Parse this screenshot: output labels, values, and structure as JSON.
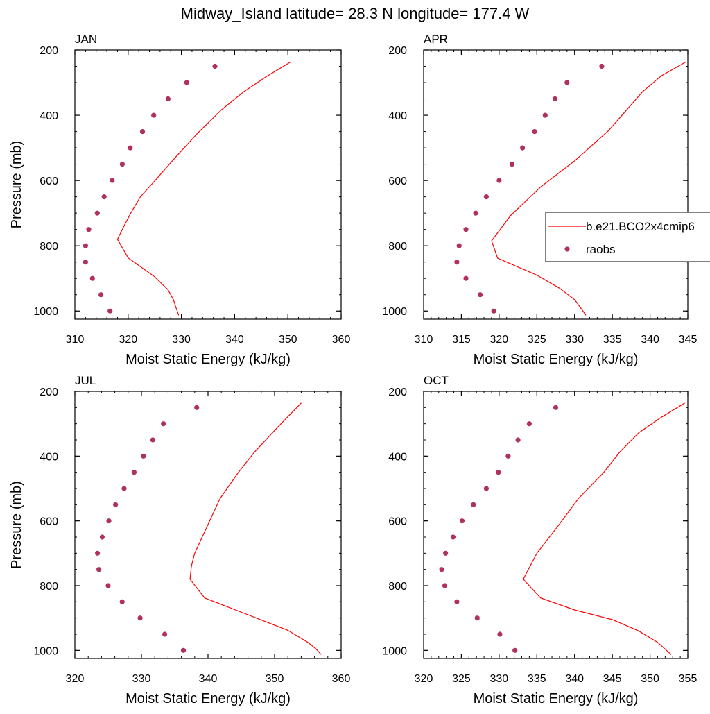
{
  "figure": {
    "title": "Midway_Island  latitude= 28.3 N longitude= 177.4 W"
  },
  "legend": {
    "position": "right",
    "entries": [
      {
        "label": "b.e21.BCO2x4cmip6",
        "style": "line",
        "color": "#ff0000"
      },
      {
        "label": "raobs",
        "style": "marker",
        "color": "#b03060"
      }
    ]
  },
  "chart_data": [
    {
      "type": "line",
      "panel": "JAN",
      "title": "JAN",
      "xlabel": "Moist Static Energy (kJ/kg)",
      "ylabel": "Pressure (mb)",
      "xlim": [
        310,
        360
      ],
      "xticks": [
        310,
        320,
        330,
        340,
        350,
        360
      ],
      "ylim": [
        200,
        1025
      ],
      "yticks": [
        200,
        400,
        600,
        800,
        1000
      ],
      "y_reversed": true,
      "series": [
        {
          "name": "b.e21.BCO2x4cmip6",
          "style": "line",
          "color": "#ff0000",
          "x": [
            350.6,
            346.2,
            341.7,
            337.5,
            333.0,
            329.0,
            325.0,
            322.3,
            320.5,
            319.2,
            318.0,
            320.0,
            325.0,
            327.5,
            328.5,
            329.0,
            329.5
          ],
          "y": [
            236,
            279,
            328,
            384,
            456,
            527,
            601,
            650,
            700,
            740,
            780,
            837,
            895,
            935,
            965,
            990,
            1013
          ]
        },
        {
          "name": "raobs",
          "style": "marker",
          "color": "#b03060",
          "x": [
            336.3,
            331.0,
            327.5,
            324.8,
            322.7,
            320.4,
            318.9,
            317.0,
            315.5,
            314.2,
            312.6,
            312.0,
            312.0,
            313.3,
            314.9,
            316.6
          ],
          "y": [
            250,
            300,
            350,
            400,
            450,
            500,
            550,
            600,
            650,
            700,
            750,
            800,
            850,
            900,
            950,
            1000
          ]
        }
      ]
    },
    {
      "type": "line",
      "panel": "APR",
      "title": "APR",
      "xlabel": "Moist Static Energy (kJ/kg)",
      "ylabel": "",
      "xlim": [
        310,
        345
      ],
      "xticks": [
        310,
        315,
        320,
        325,
        330,
        335,
        340,
        345
      ],
      "ylim": [
        200,
        1025
      ],
      "yticks": [
        200,
        400,
        600,
        800,
        1000
      ],
      "y_reversed": true,
      "series": [
        {
          "name": "b.e21.BCO2x4cmip6",
          "style": "line",
          "color": "#ff0000",
          "x": [
            344.8,
            341.5,
            339.0,
            334.5,
            330.0,
            325.5,
            321.5,
            319.0,
            319.8,
            325.0,
            328.0,
            330.0,
            330.8,
            331.5
          ],
          "y": [
            236,
            279,
            328,
            447,
            540,
            620,
            708,
            785,
            838,
            890,
            930,
            965,
            990,
            1013
          ]
        },
        {
          "name": "raobs",
          "style": "marker",
          "color": "#b03060",
          "x": [
            333.6,
            329.0,
            327.4,
            326.1,
            324.7,
            323.1,
            321.7,
            320.0,
            318.3,
            316.9,
            315.6,
            314.7,
            314.4,
            315.6,
            317.5,
            319.3
          ],
          "y": [
            250,
            300,
            350,
            400,
            450,
            500,
            550,
            600,
            650,
            700,
            750,
            800,
            850,
            900,
            950,
            1000
          ]
        }
      ]
    },
    {
      "type": "line",
      "panel": "JUL",
      "title": "JUL",
      "xlabel": "Moist Static Energy (kJ/kg)",
      "ylabel": "Pressure (mb)",
      "xlim": [
        320,
        360
      ],
      "xticks": [
        320,
        330,
        340,
        350,
        360
      ],
      "ylim": [
        200,
        1025
      ],
      "yticks": [
        200,
        400,
        600,
        800,
        1000
      ],
      "y_reversed": true,
      "series": [
        {
          "name": "b.e21.BCO2x4cmip6",
          "style": "line",
          "color": "#ff0000",
          "x": [
            354.0,
            350.5,
            347.0,
            344.5,
            341.8,
            339.8,
            338.0,
            337.5,
            337.3,
            339.5,
            346.0,
            352.0,
            355.0,
            356.2,
            357.0
          ],
          "y": [
            236,
            310,
            387,
            452,
            531,
            620,
            700,
            740,
            780,
            838,
            890,
            938,
            975,
            995,
            1013
          ]
        },
        {
          "name": "raobs",
          "style": "marker",
          "color": "#b03060",
          "x": [
            338.3,
            333.3,
            331.7,
            330.3,
            328.9,
            327.4,
            326.1,
            325.1,
            324.1,
            323.4,
            323.6,
            325.0,
            327.1,
            329.8,
            333.5,
            336.3
          ],
          "y": [
            250,
            300,
            350,
            400,
            450,
            500,
            550,
            600,
            650,
            700,
            750,
            800,
            850,
            900,
            950,
            1000
          ]
        }
      ]
    },
    {
      "type": "line",
      "panel": "OCT",
      "title": "OCT",
      "xlabel": "Moist Static Energy (kJ/kg)",
      "ylabel": "",
      "xlim": [
        320,
        355
      ],
      "xticks": [
        320,
        325,
        330,
        335,
        340,
        345,
        350,
        355
      ],
      "ylim": [
        200,
        1025
      ],
      "yticks": [
        200,
        400,
        600,
        800,
        1000
      ],
      "y_reversed": true,
      "series": [
        {
          "name": "b.e21.BCO2x4cmip6",
          "style": "line",
          "color": "#ff0000",
          "x": [
            354.6,
            351.5,
            348.5,
            346.0,
            343.8,
            340.5,
            338.0,
            335.0,
            333.2,
            335.5,
            340.0,
            345.0,
            348.5,
            351.0,
            352.8
          ],
          "y": [
            236,
            280,
            328,
            387,
            452,
            531,
            610,
            700,
            780,
            838,
            875,
            905,
            940,
            975,
            1013
          ]
        },
        {
          "name": "raobs",
          "style": "marker",
          "color": "#b03060",
          "x": [
            337.5,
            334.0,
            332.5,
            331.2,
            329.9,
            328.3,
            326.6,
            325.1,
            323.9,
            322.9,
            322.4,
            322.8,
            324.4,
            327.1,
            330.1,
            332.1
          ],
          "y": [
            250,
            300,
            350,
            400,
            450,
            500,
            550,
            600,
            650,
            700,
            750,
            800,
            850,
            900,
            950,
            1000
          ]
        }
      ]
    }
  ]
}
